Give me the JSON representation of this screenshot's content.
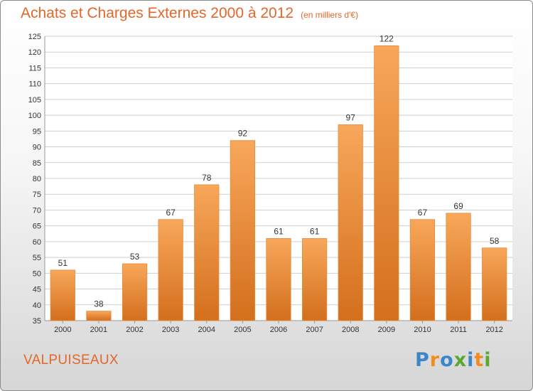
{
  "title": "Achats et Charges Externes 2000 à 2012",
  "unit": "(en milliers d'€)",
  "commune": "VALPUISEAUX",
  "logo": {
    "text": "Proxiti"
  },
  "colors": {
    "accent": "#e4672a",
    "bar_light": "#f8a75a",
    "bar_dark": "#d36f1d",
    "grid": "#cfcfcf"
  },
  "chart_data": {
    "type": "bar",
    "categories": [
      "2000",
      "2001",
      "2002",
      "2003",
      "2004",
      "2005",
      "2006",
      "2007",
      "2008",
      "2009",
      "2010",
      "2011",
      "2012"
    ],
    "values": [
      51,
      38,
      53,
      67,
      78,
      92,
      61,
      61,
      97,
      122,
      67,
      69,
      58
    ],
    "ylim": [
      35,
      125
    ],
    "ytick_step": 5,
    "grid": true,
    "data_labels": true
  }
}
